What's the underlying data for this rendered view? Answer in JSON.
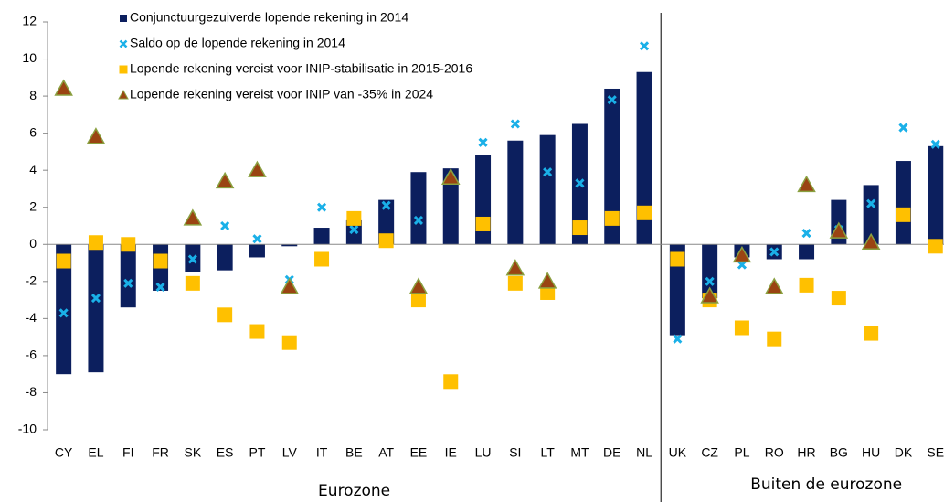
{
  "chart_data": {
    "type": "bar",
    "categories": [
      "CY",
      "EL",
      "FI",
      "FR",
      "SK",
      "ES",
      "PT",
      "LV",
      "IT",
      "BE",
      "AT",
      "EE",
      "IE",
      "LU",
      "SI",
      "LT",
      "MT",
      "DE",
      "NL",
      "UK",
      "CZ",
      "PL",
      "RO",
      "HR",
      "BG",
      "HU",
      "DK",
      "SE"
    ],
    "group_labels": [
      "Eurozone",
      "Buiten de eurozone"
    ],
    "ylim": [
      -10,
      12
    ],
    "yticks": [
      -10,
      -8,
      -6,
      -4,
      -2,
      0,
      2,
      4,
      6,
      8,
      10,
      12
    ],
    "series": [
      {
        "name": "Conjunctuurgezuiverde lopende rekening in 2014",
        "type": "bar",
        "color": "#0c1f5e",
        "values": [
          -7.0,
          -6.9,
          -3.4,
          -2.5,
          -1.5,
          -1.4,
          -0.7,
          -0.1,
          0.9,
          1.3,
          2.4,
          3.9,
          4.1,
          4.8,
          5.6,
          5.9,
          6.5,
          8.4,
          9.3,
          -4.9,
          -2.9,
          -0.7,
          -0.8,
          -0.8,
          2.4,
          3.2,
          4.5,
          5.3
        ]
      },
      {
        "name": "Saldo op de lopende rekening in 2014",
        "type": "cross",
        "color": "#1ab0e8",
        "values": [
          -3.7,
          -2.9,
          -2.1,
          -2.3,
          -0.8,
          1.0,
          0.3,
          -1.9,
          2.0,
          0.8,
          2.1,
          1.3,
          3.6,
          5.5,
          6.5,
          3.9,
          3.3,
          7.8,
          10.7,
          -5.1,
          -2.0,
          -1.1,
          -0.4,
          0.6,
          0.8,
          2.2,
          6.3,
          5.4
        ]
      },
      {
        "name": "Lopende rekening vereist voor INIP-stabilisatie in 2015-2016",
        "type": "square",
        "color": "#ffc000",
        "values": [
          -0.9,
          0.1,
          0.0,
          -0.9,
          -2.1,
          -3.8,
          -4.7,
          -5.3,
          -0.8,
          1.4,
          0.2,
          -3.0,
          -7.4,
          1.1,
          -2.1,
          -2.6,
          0.9,
          1.4,
          1.7,
          -0.8,
          -3.0,
          -4.5,
          -5.1,
          -2.2,
          -2.9,
          -4.8,
          1.6,
          -0.1
        ]
      },
      {
        "name": "Lopende rekening vereist voor INIP van -35% in 2024",
        "type": "triangle",
        "color": "#9a4412",
        "values": [
          8.4,
          5.8,
          null,
          null,
          1.4,
          3.4,
          4.0,
          -2.3,
          null,
          null,
          null,
          -2.3,
          3.6,
          null,
          -1.3,
          -2.0,
          null,
          null,
          null,
          null,
          -2.8,
          -0.6,
          -2.3,
          3.2,
          0.7,
          0.1,
          null,
          null
        ]
      }
    ]
  }
}
